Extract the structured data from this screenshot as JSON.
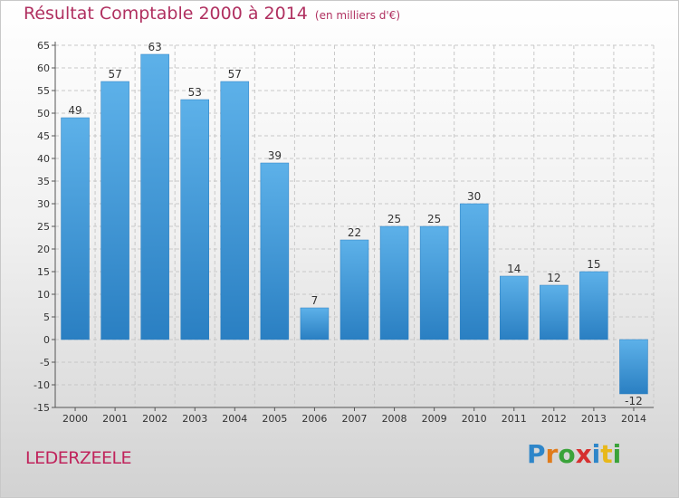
{
  "title": "Résultat Comptable 2000 à 2014",
  "subtitle": "(en milliers d'€)",
  "place": "LEDERZEELE",
  "brand": "Proxiti",
  "colors": {
    "bar_top": "#5db1e9",
    "bar_bottom": "#2a7fc2",
    "title": "#b03060",
    "grid": "#c8c8c8"
  },
  "chart_data": {
    "type": "bar",
    "categories": [
      "2000",
      "2001",
      "2002",
      "2003",
      "2004",
      "2005",
      "2006",
      "2007",
      "2008",
      "2009",
      "2010",
      "2011",
      "2012",
      "2013",
      "2014"
    ],
    "values": [
      49,
      57,
      63,
      53,
      57,
      39,
      7,
      22,
      25,
      25,
      30,
      14,
      12,
      15,
      -12
    ],
    "ylim": [
      -15,
      65
    ],
    "yticks": [
      -15,
      -10,
      -5,
      0,
      5,
      10,
      15,
      20,
      25,
      30,
      35,
      40,
      45,
      50,
      55,
      60,
      65
    ],
    "grid": true
  }
}
